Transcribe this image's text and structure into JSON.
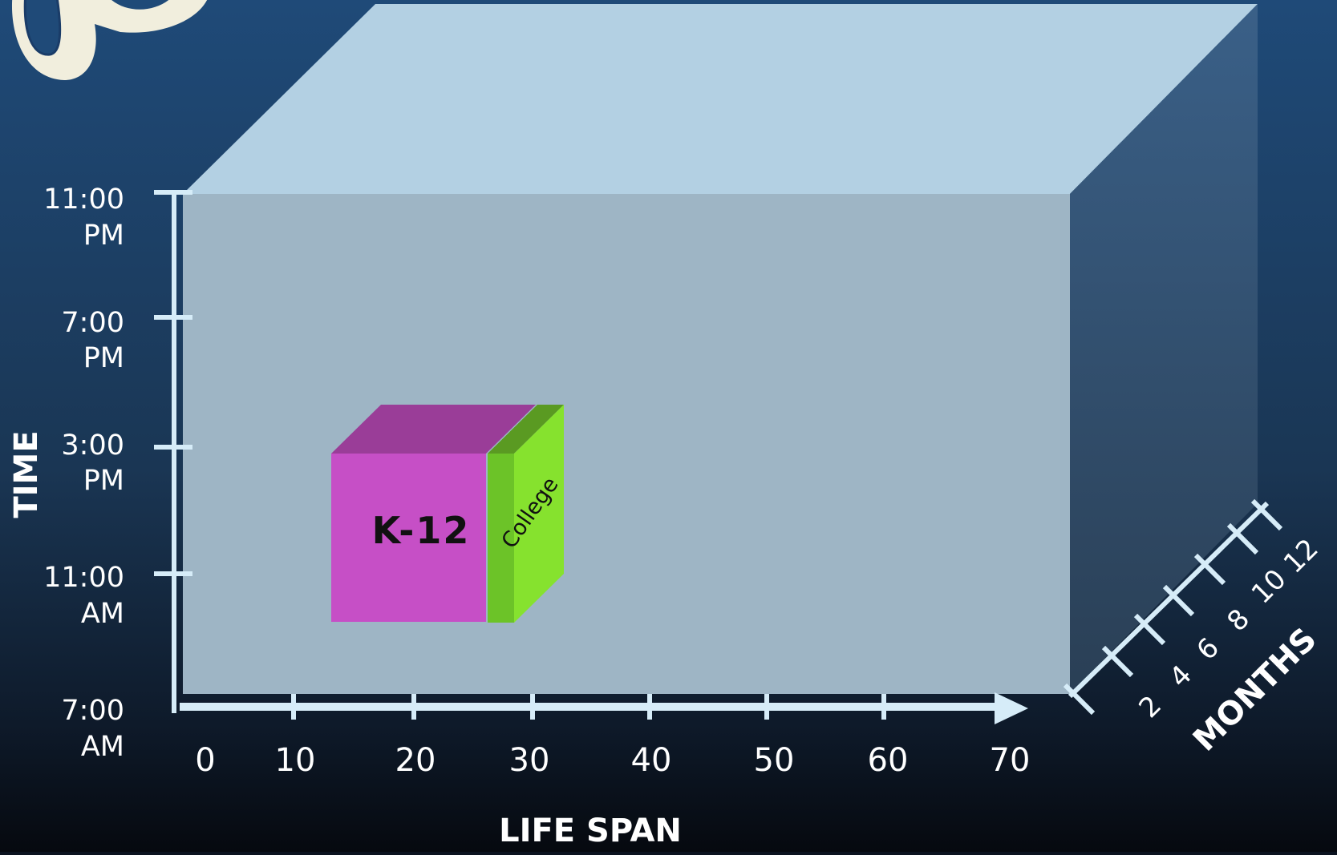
{
  "diagram": {
    "time_axis": {
      "title": "TIME",
      "ticks": [
        {
          "line1": "11:00",
          "line2": "PM"
        },
        {
          "line1": "7:00",
          "line2": "PM"
        },
        {
          "line1": "3:00",
          "line2": "PM"
        },
        {
          "line1": "11:00",
          "line2": "AM"
        },
        {
          "line1": "7:00",
          "line2": "AM"
        }
      ]
    },
    "life_span_axis": {
      "title": "LIFE SPAN",
      "ticks": [
        "0",
        "10",
        "20",
        "30",
        "40",
        "50",
        "60",
        "70"
      ]
    },
    "months_axis": {
      "title": "MONTHS",
      "ticks": [
        "2",
        "4",
        "6",
        "8",
        "10",
        "12"
      ]
    },
    "blocks": [
      {
        "label": "K-12",
        "color": "#c64fc6",
        "top_color": "#9a3d98"
      },
      {
        "label": "College",
        "color": "#86e22e",
        "top_color": "#5a9a22"
      }
    ],
    "colors": {
      "background_top": "#1f4a78",
      "background_bottom": "#090d14",
      "box_front": "#9eb5c5",
      "box_top": "#b3d0e3",
      "box_side": "#3a5f83",
      "axis": "#d6ecf8"
    }
  }
}
